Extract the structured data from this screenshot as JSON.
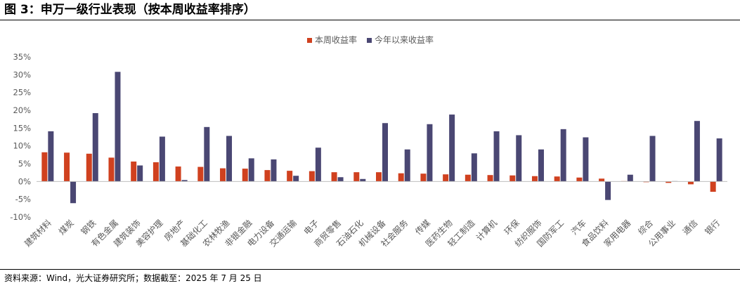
{
  "header": {
    "title": "图 3：申万一级行业表现（按本周收益率排序）"
  },
  "footer": {
    "source": "资料来源：Wind，光大证券研究所；数据截至：2025 年 7 月 25 日"
  },
  "colors": {
    "weekly": "#D0411F",
    "ytd": "#4A4773",
    "axis": "#BFBFBF",
    "text": "#595959"
  },
  "chart_data": {
    "type": "bar",
    "title": "",
    "xlabel": "",
    "ylabel": "",
    "ylim": [
      -10,
      35
    ],
    "yticks": [
      -10,
      -5,
      0,
      5,
      10,
      15,
      20,
      25,
      30,
      35
    ],
    "ytick_labels": [
      "-10%",
      "-5%",
      "0%",
      "5%",
      "10%",
      "15%",
      "20%",
      "25%",
      "30%",
      "35%"
    ],
    "grid": false,
    "legend_position": "top-center",
    "categories": [
      "建筑材料",
      "煤炭",
      "钢铁",
      "有色金属",
      "建筑装饰",
      "美容护理",
      "房地产",
      "基础化工",
      "农林牧渔",
      "非银金融",
      "电力设备",
      "交通运输",
      "电子",
      "商贸零售",
      "石油石化",
      "机械设备",
      "社会服务",
      "传媒",
      "医药生物",
      "轻工制造",
      "计算机",
      "环保",
      "纺织服饰",
      "国防军工",
      "汽车",
      "食品饮料",
      "家用电器",
      "综合",
      "公用事业",
      "通信",
      "银行"
    ],
    "series": [
      {
        "name": "本周收益率",
        "values": [
          8.2,
          8.1,
          7.8,
          6.7,
          5.6,
          5.4,
          4.2,
          4.1,
          3.7,
          3.6,
          3.2,
          3.0,
          2.9,
          2.6,
          2.6,
          2.6,
          2.3,
          2.2,
          2.0,
          1.9,
          1.8,
          1.7,
          1.5,
          1.4,
          1.1,
          0.8,
          0.1,
          -0.2,
          -0.4,
          -0.8,
          -2.9
        ]
      },
      {
        "name": "今年以来收益率",
        "values": [
          14.1,
          -6.1,
          19.2,
          30.8,
          4.5,
          12.6,
          0.4,
          15.3,
          12.8,
          6.5,
          6.2,
          1.6,
          9.5,
          1.2,
          0.7,
          16.4,
          9.0,
          16.1,
          18.8,
          7.9,
          14.1,
          13.0,
          9.0,
          14.7,
          12.4,
          -5.2,
          1.9,
          12.8,
          0.1,
          17.0,
          12.1
        ]
      }
    ]
  }
}
